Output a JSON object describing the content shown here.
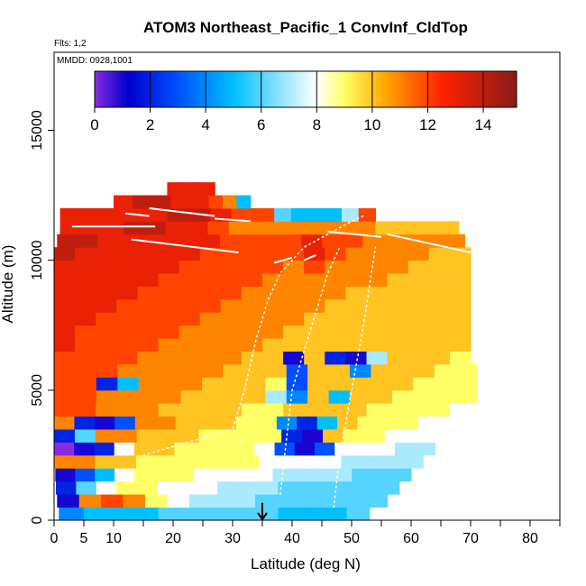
{
  "chart_data": {
    "type": "heatmap",
    "title": "ATOM3 Northeast_Pacific_1 ConvInf_CldTop",
    "subtitle_flights": "Flts: 1,2",
    "subtitle_dates": "MMDD: 0928,1001",
    "xlabel": "Latitude (deg N)",
    "ylabel": "Altitude (m)",
    "xlim": [
      0,
      85
    ],
    "ylim": [
      0,
      18000
    ],
    "x_ticks": [
      0,
      5,
      10,
      20,
      30,
      40,
      50,
      60,
      70,
      80
    ],
    "x_minor_ticks": [
      15,
      25,
      35,
      45,
      55,
      65,
      75,
      85
    ],
    "y_ticks": [
      0,
      5000,
      10000,
      15000
    ],
    "colorbar": {
      "min": 0,
      "max": 15.2,
      "ticks": [
        0,
        2,
        4,
        6,
        8,
        10,
        12,
        14
      ],
      "colors": [
        "#8a2be2",
        "#0000cd",
        "#0050ff",
        "#00bfff",
        "#ffffff",
        "#ffff66",
        "#ffa500",
        "#ff2200",
        "#8b1a1a"
      ],
      "stops": [
        0,
        1.2,
        3,
        5,
        8,
        9,
        10.5,
        12.5,
        15.2
      ]
    },
    "cell_height_m": 500,
    "rows": [
      {
        "alt": 0,
        "x0": 0.8,
        "x1": 30,
        "values": [
          4,
          5,
          5,
          5,
          6,
          6,
          6
        ]
      },
      {
        "alt": 0,
        "x0": 30,
        "x1": 53,
        "values": [
          6,
          6,
          5,
          5,
          5,
          6
        ]
      },
      {
        "alt": 500,
        "x0": 0.5,
        "x1": 56,
        "values": [
          1,
          11,
          12,
          11,
          9,
          8,
          7,
          7,
          7,
          6,
          6,
          6,
          6,
          6,
          6
        ]
      },
      {
        "alt": 1000,
        "x0": 0.3,
        "x1": 58,
        "values": [
          2,
          6,
          8,
          9,
          9,
          8,
          8,
          8,
          7,
          7,
          7,
          6,
          6,
          6,
          6,
          6,
          6
        ]
      },
      {
        "alt": 1500,
        "x0": 0.2,
        "x1": 60,
        "values": [
          1,
          3,
          5,
          8,
          9,
          9,
          9,
          8,
          8,
          8,
          8,
          7,
          7,
          7,
          7,
          6,
          6,
          6
        ]
      },
      {
        "alt": 2000,
        "x0": 0,
        "x1": 62,
        "values": [
          11,
          11,
          10,
          10,
          9,
          9,
          9,
          9,
          9,
          9,
          8,
          8,
          8,
          8,
          7,
          7,
          7,
          7
        ]
      },
      {
        "alt": 2500,
        "x0": 0,
        "x1": 64,
        "values": [
          0,
          1,
          2,
          8,
          10,
          10,
          9,
          9,
          9,
          9,
          8,
          3,
          1,
          3,
          8,
          8,
          8,
          7,
          7
        ]
      },
      {
        "alt": 3000,
        "x0": 0,
        "x1": 66,
        "values": [
          2,
          6,
          11,
          11,
          10,
          10,
          10,
          9,
          9,
          9,
          9,
          2,
          1,
          10,
          9,
          9,
          8,
          8,
          8
        ]
      },
      {
        "alt": 3500,
        "x0": 0,
        "x1": 68,
        "values": [
          11,
          2,
          1,
          3,
          11,
          11,
          10,
          10,
          10,
          9,
          9,
          4,
          2,
          5,
          10,
          9,
          9,
          9,
          8,
          8
        ]
      },
      {
        "alt": 4000,
        "x0": 0,
        "x1": 70,
        "values": [
          12,
          12,
          11,
          11,
          11,
          10,
          10,
          10,
          10,
          9,
          9,
          10,
          10,
          10,
          10,
          9,
          9,
          9,
          9,
          8
        ]
      },
      {
        "alt": 4500,
        "x0": 0,
        "x1": 71,
        "values": [
          12,
          12,
          11,
          11,
          11,
          11,
          10,
          10,
          10,
          10,
          7,
          4,
          10,
          5,
          10,
          10,
          9,
          9,
          9,
          9
        ]
      },
      {
        "alt": 5000,
        "x0": 0,
        "x1": 71,
        "values": [
          12,
          12,
          2,
          5,
          11,
          11,
          11,
          10,
          10,
          10,
          9,
          3,
          10,
          10,
          10,
          10,
          10,
          9,
          9,
          9
        ]
      },
      {
        "alt": 5500,
        "x0": 0,
        "x1": 71,
        "values": [
          12,
          12,
          12,
          11,
          11,
          11,
          11,
          11,
          10,
          10,
          10,
          3,
          10,
          10,
          4,
          10,
          10,
          10,
          9,
          9
        ]
      },
      {
        "alt": 6000,
        "x0": 0,
        "x1": 70,
        "values": [
          12,
          12,
          12,
          12,
          11,
          11,
          11,
          11,
          11,
          10,
          10,
          1,
          10,
          2,
          1,
          7,
          10,
          10,
          10,
          9
        ]
      },
      {
        "alt": 6500,
        "x0": 0,
        "x1": 70,
        "values": [
          13,
          12,
          12,
          12,
          12,
          11,
          11,
          11,
          11,
          11,
          10,
          10,
          10,
          10,
          10,
          10,
          10,
          10,
          10,
          10
        ]
      },
      {
        "alt": 7000,
        "x0": 0,
        "x1": 70,
        "values": [
          13,
          12,
          12,
          12,
          12,
          12,
          11,
          11,
          11,
          11,
          11,
          10,
          10,
          10,
          10,
          10,
          10,
          10,
          10,
          10
        ]
      },
      {
        "alt": 7500,
        "x0": 0,
        "x1": 70,
        "values": [
          13,
          13,
          12,
          12,
          12,
          12,
          12,
          11,
          11,
          11,
          11,
          11,
          10,
          10,
          10,
          10,
          10,
          10,
          10,
          10
        ]
      },
      {
        "alt": 8000,
        "x0": 0,
        "x1": 70,
        "values": [
          13,
          13,
          13,
          12,
          12,
          12,
          12,
          12,
          11,
          11,
          11,
          11,
          11,
          10,
          10,
          10,
          10,
          10,
          10,
          10
        ]
      },
      {
        "alt": 8500,
        "x0": 0,
        "x1": 70,
        "values": [
          13,
          13,
          13,
          13,
          12,
          12,
          12,
          12,
          12,
          11,
          11,
          11,
          11,
          11,
          10,
          10,
          10,
          10,
          10,
          10
        ]
      },
      {
        "alt": 9000,
        "x0": 0,
        "x1": 70,
        "values": [
          13,
          13,
          13,
          13,
          13,
          12,
          12,
          12,
          12,
          12,
          11,
          11,
          11,
          11,
          11,
          11,
          10,
          10,
          10,
          10
        ]
      },
      {
        "alt": 9500,
        "x0": 0,
        "x1": 70,
        "values": [
          13,
          13,
          13,
          13,
          13,
          13,
          12,
          12,
          12,
          12,
          12,
          11,
          12,
          11,
          11,
          11,
          11,
          10,
          10,
          10
        ]
      },
      {
        "alt": 10000,
        "x0": 0,
        "x1": 70,
        "values": [
          14,
          13,
          13,
          13,
          13,
          13,
          13,
          12,
          12,
          12,
          12,
          12,
          13,
          12,
          11,
          11,
          11,
          11,
          10,
          10
        ]
      },
      {
        "alt": 10500,
        "x0": 0.5,
        "x1": 69,
        "values": [
          14,
          14,
          13,
          13,
          13,
          13,
          13,
          13,
          12,
          12,
          12,
          12,
          13,
          12,
          12,
          11,
          11,
          11,
          11,
          11
        ]
      },
      {
        "alt": 11000,
        "x0": 1,
        "x1": 40,
        "values": [
          13,
          13,
          13,
          14,
          14,
          13,
          13,
          12,
          11,
          11,
          11
        ]
      },
      {
        "alt": 11000,
        "x0": 40,
        "x1": 68,
        "values": [
          11,
          11,
          11,
          11,
          10,
          10,
          10,
          10
        ]
      },
      {
        "alt": 11500,
        "x0": 1,
        "x1": 37,
        "values": [
          13,
          13,
          13,
          13,
          13,
          14,
          14,
          13,
          12,
          12
        ]
      },
      {
        "alt": 11500,
        "x0": 37,
        "x1": 54,
        "values": [
          6,
          5,
          5,
          5,
          7,
          12
        ]
      },
      {
        "alt": 12000,
        "x0": 10,
        "x1": 26,
        "values": [
          13,
          14,
          14,
          13,
          13
        ]
      },
      {
        "alt": 12000,
        "x0": 26,
        "x1": 33,
        "values": [
          12,
          11,
          5
        ]
      },
      {
        "alt": 12500,
        "x0": 19,
        "x1": 27,
        "values": [
          13,
          13,
          13
        ]
      }
    ],
    "flight_tracks": [
      {
        "name": "",
        "x": [
          15,
          30,
          32,
          34,
          36,
          38,
          42,
          46,
          50,
          52
        ],
        "y": [
          2500,
          3500,
          5000,
          7000,
          8500,
          9500,
          10500,
          11000,
          11500,
          11700
        ]
      },
      {
        "name": "",
        "x": [
          38,
          39,
          40,
          42,
          44,
          46,
          48
        ],
        "y": [
          1000,
          3000,
          5000,
          6500,
          8000,
          9500,
          10500
        ]
      },
      {
        "name": "",
        "x": [
          47,
          48,
          50,
          52,
          54
        ],
        "y": [
          500,
          2500,
          5000,
          7500,
          10500
        ]
      }
    ],
    "cloud_top_lines": [
      {
        "x": [
          3,
          17
        ],
        "y": [
          11300,
          11300
        ]
      },
      {
        "x": [
          12,
          16
        ],
        "y": [
          11800,
          11700
        ]
      },
      {
        "x": [
          16,
          27
        ],
        "y": [
          12000,
          11700
        ]
      },
      {
        "x": [
          27,
          33
        ],
        "y": [
          11600,
          11500
        ]
      },
      {
        "x": [
          13,
          31
        ],
        "y": [
          10800,
          10300
        ]
      },
      {
        "x": [
          46,
          55
        ],
        "y": [
          11100,
          10900
        ]
      },
      {
        "x": [
          56,
          70
        ],
        "y": [
          11000,
          10300
        ]
      },
      {
        "x": [
          37,
          40
        ],
        "y": [
          9900,
          10100
        ]
      },
      {
        "x": [
          42,
          44
        ],
        "y": [
          10000,
          10200
        ]
      }
    ],
    "arrow": {
      "x": 35,
      "y_top": 600,
      "y_bottom": 0
    }
  }
}
